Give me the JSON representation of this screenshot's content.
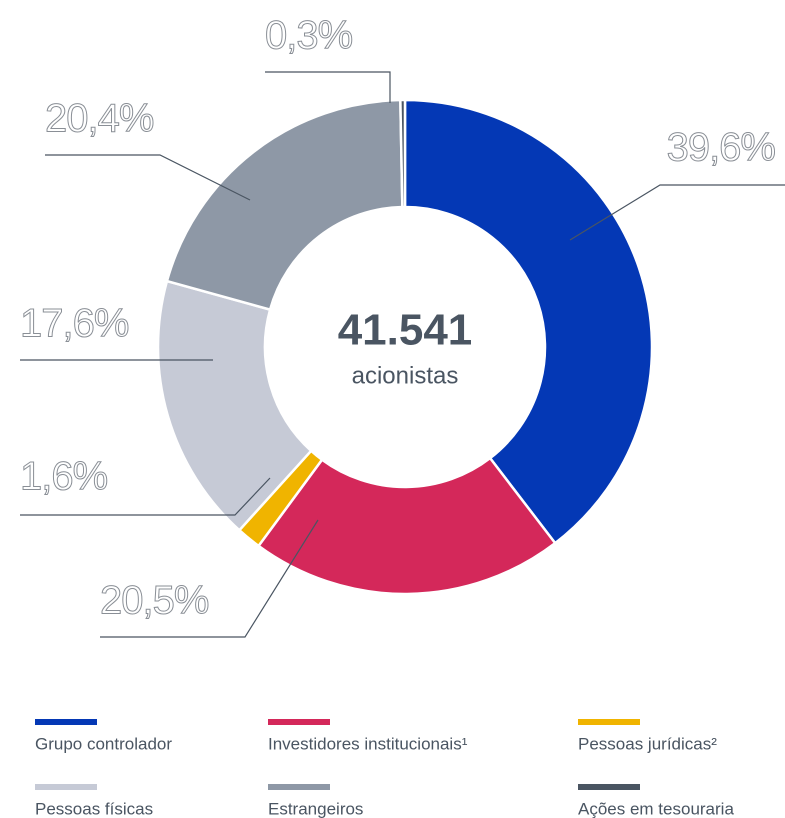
{
  "chart_data": {
    "type": "donut",
    "center_value": "41.541",
    "center_label": "acionistas",
    "categories": [
      "Grupo controlador",
      "Investidores institucionais¹",
      "Pessoas jurídicas²",
      "Pessoas físicas",
      "Estrangeiros",
      "Ações em tesouraria"
    ],
    "values": [
      39.6,
      20.5,
      1.6,
      17.6,
      20.4,
      0.3
    ],
    "value_labels": [
      "39,6%",
      "20,5%",
      "1,6%",
      "17,6%",
      "20,4%",
      "0,3%"
    ],
    "colors": [
      "#0438b5",
      "#d4285a",
      "#f0b400",
      "#c6cad6",
      "#8e98a6",
      "#4a5562"
    ]
  }
}
